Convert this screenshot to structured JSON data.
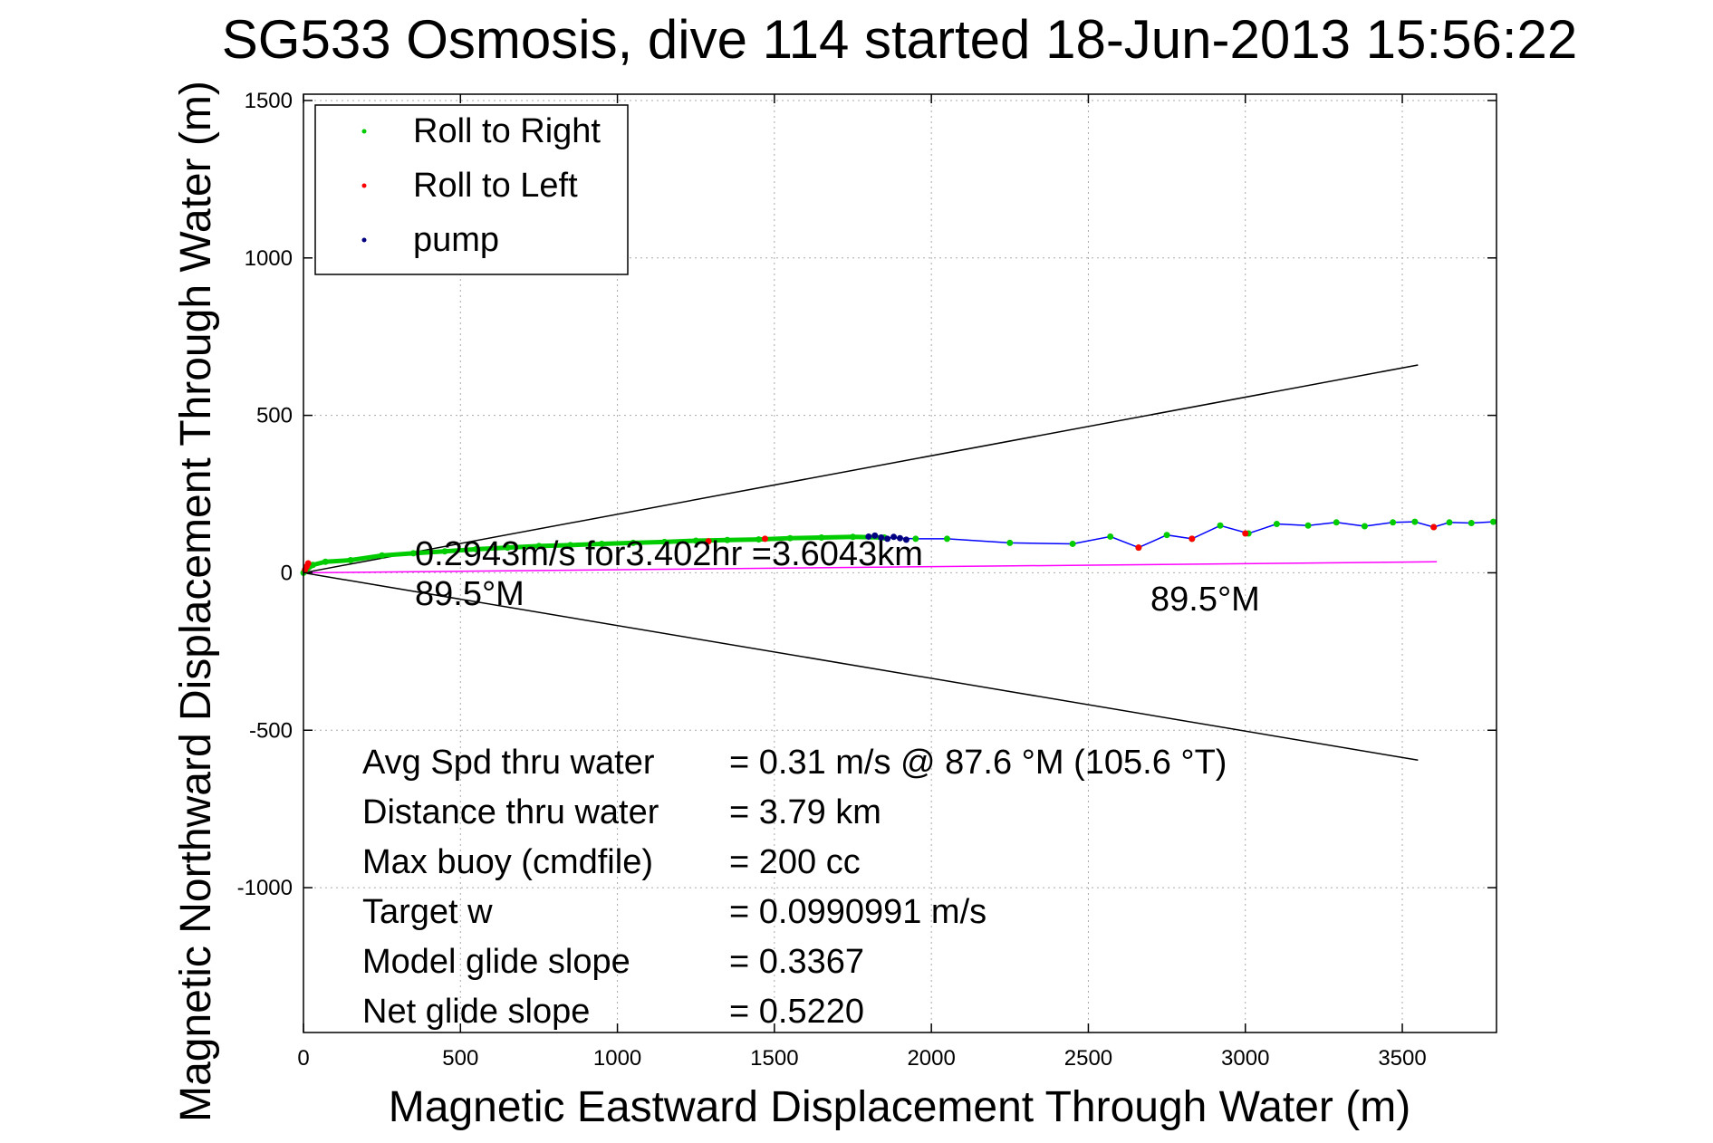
{
  "chart_data": {
    "type": "scatter",
    "title": "SG533 Osmosis, dive 114 started 18-Jun-2013 15:56:22",
    "xlabel": "Magnetic Eastward Displacement Through Water (m)",
    "ylabel": "Magnetic Northward Displacement Through Water (m)",
    "xlim": [
      0,
      3800
    ],
    "ylim": [
      -1460,
      1520
    ],
    "xticks": [
      0,
      500,
      1000,
      1500,
      2000,
      2500,
      3000,
      3500
    ],
    "yticks": [
      -1000,
      -500,
      0,
      500,
      1000,
      1500
    ],
    "grid": true,
    "legend_position": "top-left",
    "legend": [
      {
        "label": "Roll to Right",
        "color": "#00cc00"
      },
      {
        "label": "Roll to Left",
        "color": "#ff0000"
      },
      {
        "label": "pump",
        "color": "#000080"
      }
    ],
    "series": [
      {
        "name": "Roll to Right",
        "color": "#00cc00",
        "line_color": "#0000ff",
        "x": [
          0,
          30,
          70,
          150,
          250,
          350,
          450,
          550,
          650,
          750,
          850,
          950,
          1050,
          1150,
          1250,
          1350,
          1450,
          1550,
          1650,
          1750,
          1850,
          1950,
          2050,
          2250,
          2450,
          2570,
          2660,
          2750,
          2830,
          2920,
          3010,
          3100,
          3200,
          3290,
          3380,
          3470,
          3540,
          3600,
          3650,
          3720,
          3790
        ],
        "y": [
          0,
          25,
          35,
          40,
          55,
          62,
          68,
          75,
          80,
          85,
          88,
          92,
          95,
          98,
          102,
          104,
          106,
          110,
          112,
          114,
          112,
          108,
          108,
          95,
          92,
          115,
          80,
          120,
          108,
          150,
          125,
          155,
          150,
          160,
          148,
          160,
          162,
          145,
          160,
          158,
          162
        ]
      },
      {
        "name": "Roll to Left",
        "color": "#ff0000",
        "x": [
          5,
          10,
          15,
          1290,
          1470,
          2660,
          2830,
          3000,
          3600
        ],
        "y": [
          10,
          20,
          30,
          100,
          108,
          80,
          108,
          125,
          145
        ]
      },
      {
        "name": "pump",
        "color": "#000080",
        "x": [
          1800,
          1820,
          1840,
          1860,
          1880,
          1900,
          1920
        ],
        "y": [
          115,
          118,
          112,
          108,
          114,
          110,
          105
        ]
      }
    ],
    "reference_lines": [
      {
        "color": "#000000",
        "x": [
          0,
          3550
        ],
        "y": [
          0,
          660
        ]
      },
      {
        "color": "#000000",
        "x": [
          0,
          3550
        ],
        "y": [
          0,
          -595
        ]
      },
      {
        "color": "#ff00ff",
        "x": [
          0,
          3610
        ],
        "y": [
          0,
          35
        ]
      }
    ],
    "annotations": {
      "speed_line": "0.2943m/s for3.402hr =3.6043km",
      "heading_left": "89.5°M",
      "heading_right": "89.5°M",
      "stats": [
        {
          "label": "Avg Spd thru water",
          "value": "=  0.31 m/s @  87.6 °M (105.6 °T)"
        },
        {
          "label": "Distance thru water",
          "value": "=  3.79 km"
        },
        {
          "label": "Max buoy (cmdfile)",
          "value": "= 200 cc"
        },
        {
          "label": "Target w",
          "value": "= 0.0990991 m/s"
        },
        {
          "label": "Model glide slope",
          "value": "= 0.3367"
        },
        {
          "label": "Net glide slope",
          "value": "= 0.5220"
        }
      ]
    }
  }
}
